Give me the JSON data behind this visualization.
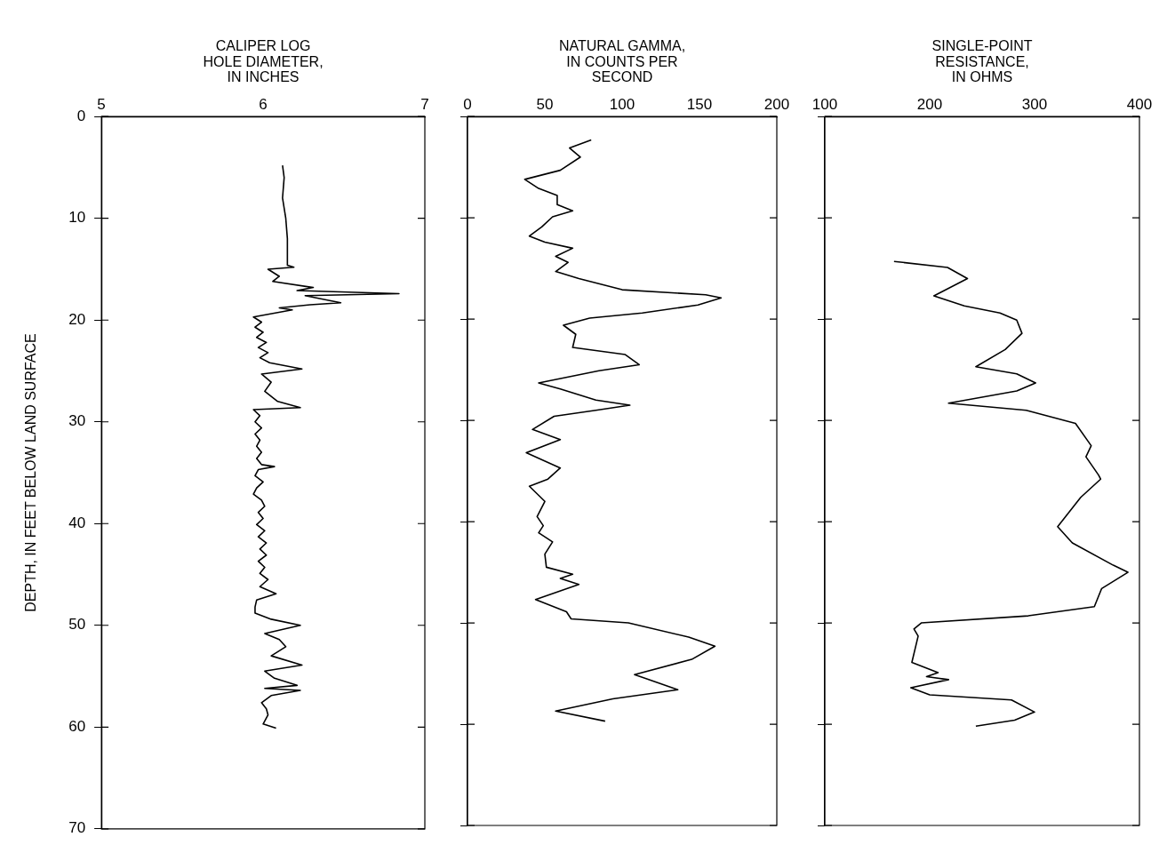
{
  "chart_data": [
    {
      "type": "line",
      "xlabel": "CALIPER LOG\nHOLE DIAMETER,\nIN INCHES",
      "ylabel": "DEPTH, IN FEET BELOW LAND SURFACE",
      "xlim": [
        5,
        7
      ],
      "xticks": [
        5,
        6,
        7
      ],
      "ylim": [
        70,
        0
      ],
      "yticks": [
        0,
        10,
        20,
        30,
        40,
        50,
        60,
        70
      ],
      "x": [
        6.12,
        6.13,
        6.12,
        6.14,
        6.15,
        6.15,
        6.19,
        6.03,
        6.1,
        6.06,
        6.31,
        6.21,
        6.84,
        6.26,
        6.48,
        6.29,
        6.1,
        6.18,
        5.94,
        5.99,
        5.95,
        6.0,
        5.96,
        6.02,
        5.97,
        6.03,
        5.98,
        6.04,
        6.24,
        5.99,
        6.05,
        6.01,
        6.09,
        6.23,
        5.94,
        5.98,
        5.95,
        5.99,
        5.95,
        5.98,
        5.96,
        5.99,
        5.96,
        5.99,
        6.07,
        5.97,
        5.95,
        6.0,
        5.96,
        5.94,
        5.99,
        6.01,
        5.97,
        6.0,
        5.96,
        6.01,
        5.97,
        6.02,
        5.98,
        6.02,
        5.97,
        6.01,
        5.98,
        6.03,
        5.98,
        6.08,
        5.96,
        5.95,
        5.95,
        6.05,
        6.23,
        6.01,
        6.1,
        6.14,
        6.05,
        6.24,
        6.01,
        6.07,
        6.21,
        6.01,
        6.23,
        6.05,
        5.99,
        6.02,
        6.03,
        6.0,
        6.08
      ],
      "series": [
        {
          "color": "#000000",
          "values": [
            4.8,
            6,
            8,
            10,
            12,
            14.6,
            14.8,
            15.0,
            15.7,
            16.2,
            16.8,
            17.1,
            17.4,
            17.6,
            18.3,
            18.5,
            18.8,
            19.0,
            19.7,
            20.2,
            20.7,
            21.2,
            21.7,
            22.2,
            22.7,
            23.2,
            23.7,
            24.2,
            24.8,
            25.3,
            26.1,
            27.0,
            28.0,
            28.6,
            28.8,
            29.4,
            30.0,
            30.6,
            31.2,
            31.8,
            32.4,
            33.0,
            33.6,
            34.2,
            34.4,
            34.7,
            35.3,
            35.9,
            36.5,
            37.1,
            37.7,
            38.3,
            38.9,
            39.5,
            40.1,
            40.7,
            41.3,
            41.9,
            42.5,
            43.1,
            43.7,
            44.3,
            44.9,
            45.5,
            46.2,
            46.9,
            47.5,
            48.2,
            48.8,
            49.4,
            50.0,
            50.8,
            51.4,
            52.1,
            53.0,
            53.9,
            54.5,
            55.2,
            55.9,
            56.2,
            56.4,
            56.9,
            57.6,
            58.2,
            58.8,
            59.7,
            60.1
          ]
        }
      ]
    },
    {
      "type": "line",
      "xlabel": "NATURAL GAMMA,\nIN COUNTS PER\nSECOND",
      "xlim": [
        0,
        200
      ],
      "xticks": [
        0,
        50,
        100,
        150,
        200
      ],
      "ylim": [
        70,
        0
      ],
      "yticks": [
        0,
        10,
        20,
        30,
        40,
        50,
        60,
        70
      ],
      "tick_labels": "x",
      "x": [
        80,
        66,
        73,
        60,
        37,
        46,
        58,
        58,
        68,
        55,
        48,
        40,
        50,
        68,
        57,
        65,
        57,
        72,
        100,
        154,
        164,
        149,
        113,
        79,
        62,
        70,
        68,
        102,
        111,
        85,
        46,
        60,
        83,
        105,
        83,
        56,
        42,
        60,
        38,
        60,
        52,
        40,
        50,
        45,
        49,
        46,
        55,
        50,
        51,
        68,
        60,
        72,
        44,
        64,
        67,
        104,
        143,
        160,
        145,
        108,
        136,
        94,
        57,
        89
      ],
      "series": [
        {
          "color": "#000000",
          "values": [
            2.3,
            3.1,
            4.0,
            5.3,
            6.2,
            7.1,
            7.8,
            8.7,
            9.3,
            9.9,
            10.9,
            11.8,
            12.4,
            13.0,
            13.8,
            14.4,
            15.3,
            16.0,
            17.1,
            17.6,
            17.9,
            18.6,
            19.4,
            19.9,
            20.6,
            21.5,
            22.8,
            23.5,
            24.5,
            25.1,
            26.3,
            26.9,
            28.0,
            28.5,
            29.0,
            29.6,
            30.9,
            31.9,
            33.2,
            34.7,
            35.8,
            36.5,
            38.0,
            39.5,
            40.4,
            41.1,
            42.0,
            43.2,
            44.5,
            45.2,
            45.6,
            46.2,
            47.7,
            48.9,
            49.6,
            50.0,
            51.4,
            52.3,
            53.6,
            55.1,
            56.6,
            57.5,
            58.7,
            59.7
          ]
        }
      ]
    },
    {
      "type": "line",
      "xlabel": "SINGLE-POINT\nRESISTANCE,\nIN OHMS",
      "xlim": [
        100,
        400
      ],
      "xticks": [
        100,
        200,
        300,
        400
      ],
      "ylim": [
        70,
        0
      ],
      "yticks": [
        0,
        10,
        20,
        30,
        40,
        50,
        60,
        70
      ],
      "tick_labels": "x",
      "x": [
        166,
        217,
        236,
        204,
        233,
        267,
        283,
        288,
        272,
        244,
        283,
        301,
        283,
        218,
        292,
        339,
        354,
        349,
        361,
        363,
        344,
        322,
        336,
        375,
        389,
        364,
        357,
        294,
        192,
        185,
        189,
        183,
        208,
        197,
        218,
        182,
        200,
        278,
        300,
        281,
        244
      ],
      "series": [
        {
          "color": "#000000",
          "values": [
            14.3,
            14.9,
            16.0,
            17.7,
            18.7,
            19.4,
            20.1,
            21.4,
            23.0,
            24.7,
            25.4,
            26.3,
            27.1,
            28.3,
            29.0,
            30.3,
            32.5,
            33.6,
            35.4,
            35.8,
            37.6,
            40.5,
            42.1,
            44.3,
            45.0,
            46.6,
            48.4,
            49.3,
            50.0,
            50.6,
            51.3,
            53.9,
            54.9,
            55.3,
            55.6,
            56.4,
            57.1,
            57.6,
            58.8,
            59.6,
            60.2
          ]
        }
      ]
    }
  ]
}
